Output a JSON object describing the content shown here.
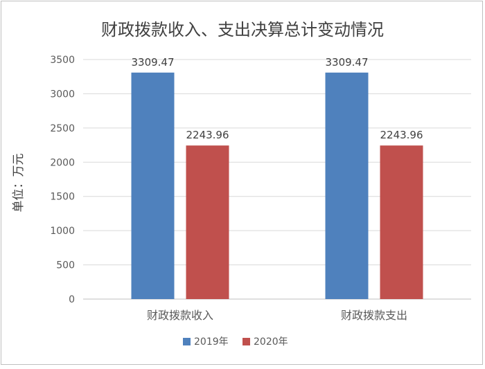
{
  "chart_data": {
    "type": "bar",
    "title": "财政拨款收入、支出决算总计变动情况",
    "ylabel": "单位：万元",
    "xlabel": "",
    "categories": [
      "财政拨款收入",
      "财政拨款支出"
    ],
    "series": [
      {
        "name": "2019年",
        "color": "#4f81bd",
        "values": [
          3309.47,
          3309.47
        ]
      },
      {
        "name": "2020年",
        "color": "#c0504d",
        "values": [
          2243.96,
          2243.96
        ]
      }
    ],
    "ylim": [
      0,
      3500
    ],
    "yticks": [
      "0",
      "500",
      "1000",
      "1500",
      "2000",
      "2500",
      "3000",
      "3500"
    ],
    "grid": true,
    "legend": "bottom"
  }
}
